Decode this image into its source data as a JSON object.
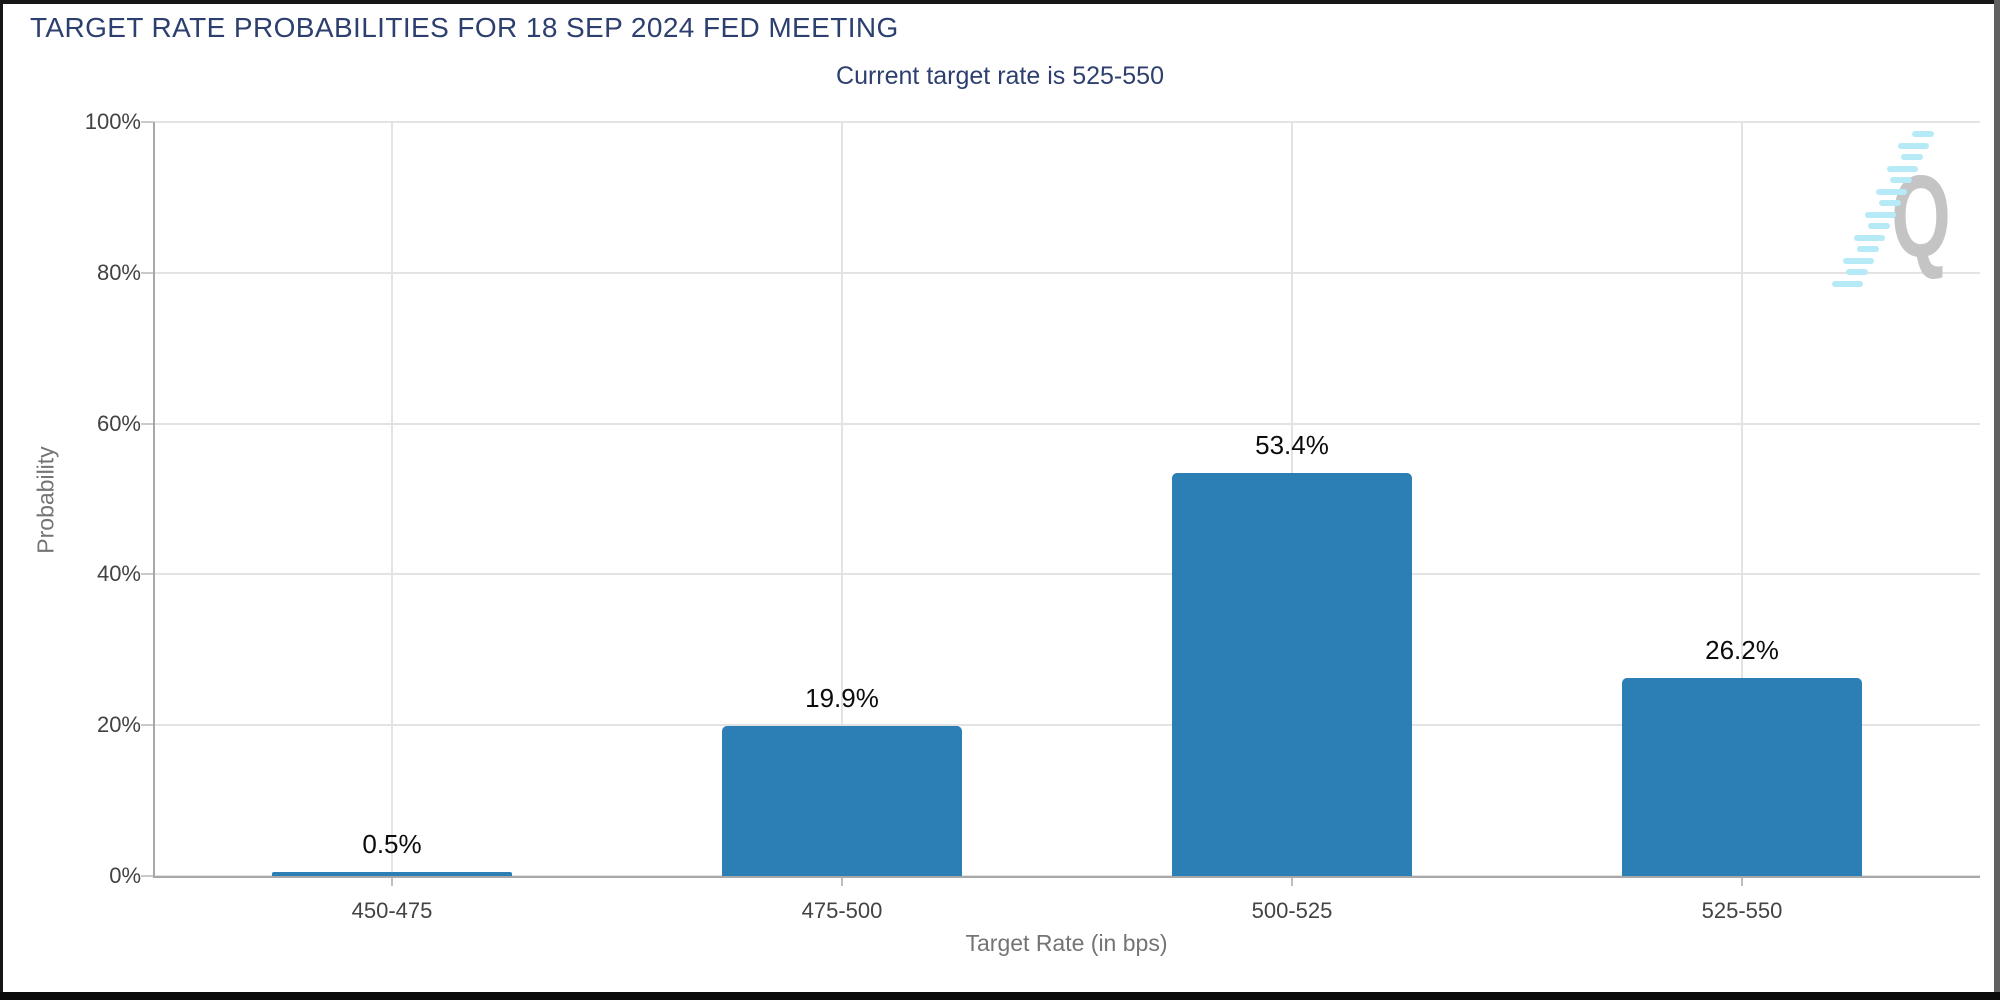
{
  "watermark": {
    "letter": "Q"
  },
  "colors": {
    "title_text": "#2d3f6e",
    "bar": "#2b7fb4",
    "grid": "#e3e3e3",
    "axis": "#a8a8a8",
    "tick_label": "#434343",
    "axis_title": "#747474",
    "data_label": "#0c0c0c",
    "logo_gray": "#c4c4c4",
    "logo_cyan": "#b5eaf6"
  },
  "chart_data": {
    "type": "bar",
    "title": "TARGET RATE PROBABILITIES FOR 18 SEP 2024 FED MEETING",
    "subtitle": "Current target rate is 525-550",
    "categories": [
      "450-475",
      "475-500",
      "500-525",
      "525-550"
    ],
    "values": [
      0.5,
      19.9,
      53.4,
      26.2
    ],
    "data_labels": [
      "0.5%",
      "19.9%",
      "53.4%",
      "26.2%"
    ],
    "xlabel": "Target Rate (in bps)",
    "ylabel": "Probability",
    "ylim": [
      0,
      100
    ],
    "yticks": [
      0,
      20,
      40,
      60,
      80,
      100
    ],
    "ytick_labels": [
      "0%",
      "20%",
      "40%",
      "60%",
      "80%",
      "100%"
    ],
    "grid": true,
    "legend": false,
    "bar_color": "#2b7fb4"
  }
}
